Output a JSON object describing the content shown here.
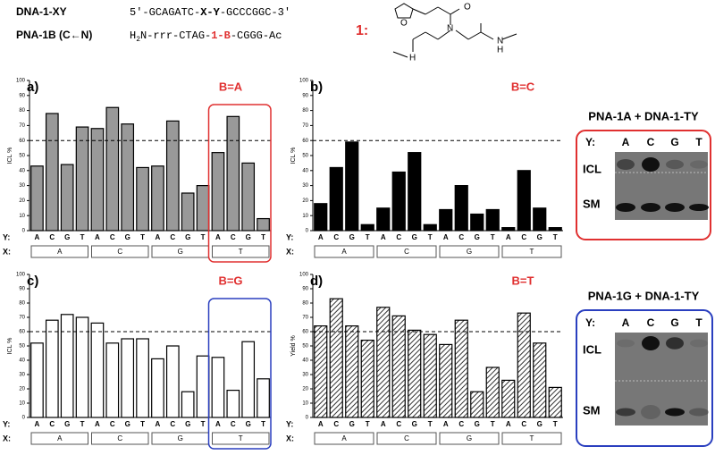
{
  "header": {
    "dna_name": "DNA-1-XY",
    "dna_seq": [
      "5′-GCAGATC-",
      "X-Y",
      "-GCCCGGC-3′"
    ],
    "pna_name": "PNA-1B (C←N)",
    "pna_seq": [
      "H",
      "2",
      "N-rrr-CTAG-",
      "1-B",
      "-CGGG-Ac"
    ],
    "compound_label": "1:",
    "structure_atoms": [
      "O",
      "O",
      "N",
      "N",
      "H",
      "H"
    ]
  },
  "chart_data": [
    {
      "type": "bar",
      "panel_label": "a)",
      "annotation": "B=A",
      "ylabel": "ICL %",
      "category_axis_label": "Y:",
      "group_axis_label": "X:",
      "categories": [
        "A",
        "C",
        "G",
        "T",
        "A",
        "C",
        "G",
        "T",
        "A",
        "C",
        "G",
        "T",
        "A",
        "C",
        "G",
        "T"
      ],
      "groups": [
        "A",
        "C",
        "G",
        "T"
      ],
      "values": [
        43,
        78,
        44,
        69,
        68,
        82,
        71,
        42,
        43,
        73,
        25,
        30,
        52,
        76,
        45,
        8
      ],
      "color": "#999999",
      "pattern": "solid",
      "reference_line": 60,
      "highlight_color": "#e03030",
      "ylim": [
        0,
        100
      ],
      "yticks": [
        0,
        10,
        20,
        30,
        40,
        50,
        60,
        70,
        80,
        90,
        100
      ]
    },
    {
      "type": "bar",
      "panel_label": "b)",
      "annotation": "B=C",
      "ylabel": "ICL %",
      "category_axis_label": "Y:",
      "group_axis_label": "X:",
      "categories": [
        "A",
        "C",
        "G",
        "T",
        "A",
        "C",
        "G",
        "T",
        "A",
        "C",
        "G",
        "T",
        "A",
        "C",
        "G",
        "T"
      ],
      "groups": [
        "A",
        "C",
        "G",
        "T"
      ],
      "values": [
        18,
        42,
        59,
        4,
        15,
        39,
        52,
        4,
        14,
        30,
        11,
        14,
        2,
        40,
        15,
        2
      ],
      "color": "#000000",
      "pattern": "solid",
      "reference_line": 60,
      "ylim": [
        0,
        100
      ],
      "yticks": [
        0,
        10,
        20,
        30,
        40,
        50,
        60,
        70,
        80,
        90,
        100
      ]
    },
    {
      "type": "bar",
      "panel_label": "c)",
      "annotation": "B=G",
      "ylabel": "ICL %",
      "category_axis_label": "Y:",
      "group_axis_label": "X:",
      "categories": [
        "A",
        "C",
        "G",
        "T",
        "A",
        "C",
        "G",
        "T",
        "A",
        "C",
        "G",
        "T",
        "A",
        "C",
        "G",
        "T"
      ],
      "groups": [
        "A",
        "C",
        "G",
        "T"
      ],
      "values": [
        52,
        68,
        72,
        70,
        66,
        52,
        55,
        55,
        41,
        50,
        18,
        43,
        42,
        19,
        53,
        27
      ],
      "color": "#ffffff",
      "pattern": "solid",
      "reference_line": 60,
      "highlight_color": "#2a3fbf",
      "ylim": [
        0,
        100
      ],
      "yticks": [
        0,
        10,
        20,
        30,
        40,
        50,
        60,
        70,
        80,
        90,
        100
      ]
    },
    {
      "type": "bar",
      "panel_label": "d)",
      "annotation": "B=T",
      "ylabel": "Yield %",
      "category_axis_label": "Y:",
      "group_axis_label": "X:",
      "categories": [
        "A",
        "C",
        "G",
        "T",
        "A",
        "C",
        "G",
        "T",
        "A",
        "C",
        "G",
        "T",
        "A",
        "C",
        "G",
        "T"
      ],
      "groups": [
        "A",
        "C",
        "G",
        "T"
      ],
      "values": [
        64,
        83,
        64,
        54,
        77,
        71,
        61,
        58,
        51,
        68,
        18,
        35,
        26,
        73,
        52,
        21
      ],
      "color": "#444444",
      "pattern": "hatch",
      "reference_line": 60,
      "ylim": [
        0,
        100
      ],
      "yticks": [
        0,
        10,
        20,
        30,
        40,
        50,
        60,
        70,
        80,
        90,
        100
      ]
    }
  ],
  "gels": [
    {
      "title": "PNA-1A + DNA-1-TY",
      "lane_axis": "Y:",
      "lanes": [
        "A",
        "C",
        "G",
        "T"
      ],
      "band_labels": [
        "ICL",
        "SM"
      ],
      "border_color": "#e03030"
    },
    {
      "title": "PNA-1G + DNA-1-TY",
      "lane_axis": "Y:",
      "lanes": [
        "A",
        "C",
        "G",
        "T"
      ],
      "band_labels": [
        "ICL",
        "SM"
      ],
      "border_color": "#2a3fbf"
    }
  ]
}
